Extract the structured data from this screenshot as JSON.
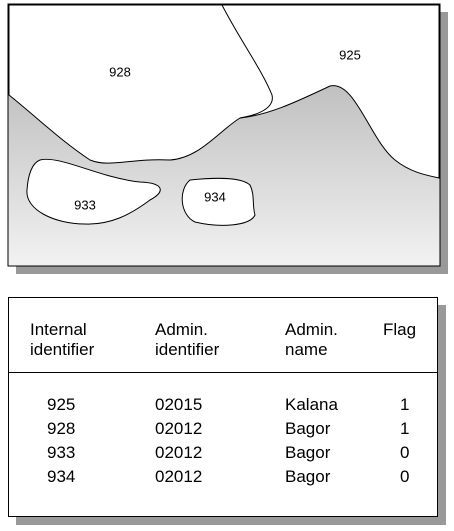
{
  "map": {
    "labels": [
      "928",
      "925",
      "933",
      "934"
    ]
  },
  "table": {
    "headers": [
      [
        "Internal",
        "identifier"
      ],
      [
        "Admin.",
        "identifier"
      ],
      [
        "Admin.",
        "name"
      ],
      [
        "Flag"
      ]
    ],
    "rows": [
      [
        "925",
        "02015",
        "Kalana",
        "1"
      ],
      [
        "928",
        "02012",
        "Bagor",
        "1"
      ],
      [
        "933",
        "02012",
        "Bagor",
        "0"
      ],
      [
        "934",
        "02012",
        "Bagor",
        "0"
      ]
    ]
  }
}
